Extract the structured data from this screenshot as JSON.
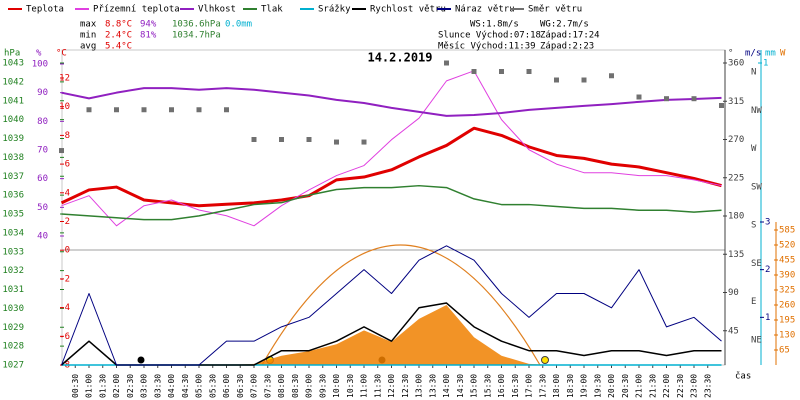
{
  "header": {
    "stats": [
      {
        "label": "max",
        "values": [
          "8.8°C",
          "94%",
          "1036.6hPa",
          "0.0mm"
        ]
      },
      {
        "label": "min",
        "values": [
          "2.4°C",
          "81%",
          "1034.7hPa"
        ]
      },
      {
        "label": "avg",
        "values": [
          "5.4°C"
        ]
      }
    ],
    "info": [
      [
        "WS:1.8m/s",
        "WG:2.7m/s"
      ],
      [
        "Slunce Východ:07:18",
        "Západ:17:24"
      ],
      [
        "Měsíc Východ:11:39",
        "Západ:2:23"
      ]
    ]
  },
  "chart_data": {
    "type": "line",
    "title": "14.2.2019",
    "x_label": "čas",
    "x": [
      0,
      1,
      2,
      3,
      4,
      5,
      6,
      7,
      8,
      9,
      10,
      11,
      12,
      13,
      14,
      15,
      16,
      17,
      18,
      19,
      20,
      21,
      22,
      23,
      24
    ],
    "xlim": [
      0,
      24
    ],
    "xticks": [
      {
        "value": 0.5,
        "label": "00:30"
      },
      {
        "value": 1,
        "label": "01:00"
      },
      {
        "value": 1.5,
        "label": "01:30"
      },
      {
        "value": 2,
        "label": "02:00"
      },
      {
        "value": 2.5,
        "label": "02:30"
      },
      {
        "value": 3,
        "label": "03:00"
      },
      {
        "value": 3.5,
        "label": "03:30"
      },
      {
        "value": 4,
        "label": "04:00"
      },
      {
        "value": 4.5,
        "label": "04:30"
      },
      {
        "value": 5,
        "label": "05:00"
      },
      {
        "value": 5.5,
        "label": "05:30"
      },
      {
        "value": 6,
        "label": "06:00"
      },
      {
        "value": 6.5,
        "label": "06:30"
      },
      {
        "value": 7,
        "label": "07:00"
      },
      {
        "value": 7.5,
        "label": "07:30"
      },
      {
        "value": 8,
        "label": "08:00"
      },
      {
        "value": 8.5,
        "label": "08:30"
      },
      {
        "value": 9,
        "label": "09:00"
      },
      {
        "value": 9.5,
        "label": "09:30"
      },
      {
        "value": 10,
        "label": "10:00"
      },
      {
        "value": 10.5,
        "label": "10:30"
      },
      {
        "value": 11,
        "label": "11:00"
      },
      {
        "value": 11.5,
        "label": "11:30"
      },
      {
        "value": 12,
        "label": "12:00"
      },
      {
        "value": 12.5,
        "label": "12:30"
      },
      {
        "value": 13,
        "label": "13:00"
      },
      {
        "value": 13.5,
        "label": "13:30"
      },
      {
        "value": 14,
        "label": "14:00"
      },
      {
        "value": 14.5,
        "label": "14:30"
      },
      {
        "value": 15,
        "label": "15:00"
      },
      {
        "value": 15.5,
        "label": "15:30"
      },
      {
        "value": 16,
        "label": "16:00"
      },
      {
        "value": 16.5,
        "label": "16:30"
      },
      {
        "value": 17,
        "label": "17:00"
      },
      {
        "value": 17.5,
        "label": "17:30"
      },
      {
        "value": 18,
        "label": "18:00"
      },
      {
        "value": 18.5,
        "label": "18:30"
      },
      {
        "value": 19,
        "label": "19:00"
      },
      {
        "value": 19.5,
        "label": "19:30"
      },
      {
        "value": 20,
        "label": "20:00"
      },
      {
        "value": 20.5,
        "label": "20:30"
      },
      {
        "value": 21,
        "label": "21:00"
      },
      {
        "value": 21.5,
        "label": "21:30"
      },
      {
        "value": 22,
        "label": "22:00"
      },
      {
        "value": 22.5,
        "label": "22:30"
      },
      {
        "value": 23,
        "label": "23:00"
      },
      {
        "value": 23.5,
        "label": "23:30"
      }
    ],
    "axes": [
      {
        "label": "hPa",
        "color": "#208020",
        "lim": [
          1027,
          1043
        ],
        "ticks": [
          1027,
          1028,
          1029,
          1030,
          1031,
          1032,
          1033,
          1034,
          1035,
          1036,
          1037,
          1038,
          1039,
          1040,
          1041,
          1042,
          1043
        ]
      },
      {
        "label": "%",
        "color": "#9020c0",
        "lim": [
          40,
          100
        ],
        "ticks": [
          40,
          50,
          60,
          70,
          80,
          90,
          100
        ]
      },
      {
        "label": "°C",
        "color": "#e00000",
        "lim": [
          -8,
          12
        ],
        "ticks": [
          -8,
          -6,
          -4,
          -2,
          0,
          2,
          4,
          6,
          8,
          10,
          12
        ]
      },
      {
        "label": "°",
        "color": "#404040",
        "lim": [
          0,
          360
        ],
        "ticks": [
          45,
          90,
          135,
          180,
          225,
          270,
          315,
          360
        ],
        "tick_names": [
          "NE",
          "E",
          "SE",
          "S",
          "SW",
          "W",
          "NW",
          "N"
        ]
      },
      {
        "label": "m/s",
        "color": "#000080",
        "lim": [
          0,
          3
        ],
        "ticks": [
          1,
          2,
          3
        ]
      },
      {
        "label": "mm",
        "color": "#00b0d0",
        "lim": [
          0,
          1
        ],
        "ticks": [
          1
        ]
      },
      {
        "label": "W",
        "color": "#e07000",
        "lim": [
          0,
          585
        ],
        "ticks": [
          65,
          130,
          195,
          260,
          325,
          390,
          455,
          520,
          585
        ]
      }
    ],
    "series": [
      {
        "name": "Teplota",
        "color": "#e00000",
        "axis": 2,
        "width": 3,
        "values": [
          3.3,
          4.2,
          4.4,
          3.5,
          3.3,
          3.1,
          3.2,
          3.3,
          3.5,
          3.8,
          4.9,
          5.1,
          5.6,
          6.5,
          7.3,
          8.5,
          8.0,
          7.2,
          6.6,
          6.4,
          6.0,
          5.8,
          5.4,
          5.0,
          4.5
        ]
      },
      {
        "name": "Přízemní teplota",
        "color": "#e040e0",
        "axis": 2,
        "width": 1,
        "values": [
          3.1,
          3.8,
          1.7,
          3.1,
          3.5,
          2.8,
          2.4,
          1.7,
          3.1,
          4.2,
          5.2,
          5.9,
          7.7,
          9.2,
          11.8,
          12.5,
          9.1,
          7.0,
          6.0,
          5.4,
          5.4,
          5.2,
          5.2,
          4.9,
          4.5
        ]
      },
      {
        "name": "Vlhkost",
        "color": "#9020c0",
        "axis": 1,
        "width": 2,
        "values": [
          90,
          88,
          90,
          91.6,
          91.6,
          91,
          91.6,
          91,
          90,
          89,
          87.5,
          86.4,
          84.7,
          83.3,
          81.9,
          82.2,
          82.9,
          84,
          84.7,
          85.4,
          86,
          86.8,
          87.5,
          87.8,
          88.2
        ]
      },
      {
        "name": "Tlak",
        "color": "#308030",
        "axis": 0,
        "width": 1.5,
        "values": [
          1035,
          1034.9,
          1034.8,
          1034.7,
          1034.7,
          1034.9,
          1035.2,
          1035.5,
          1035.6,
          1036,
          1036.3,
          1036.4,
          1036.4,
          1036.5,
          1036.4,
          1035.8,
          1035.5,
          1035.5,
          1035.4,
          1035.3,
          1035.3,
          1035.2,
          1035.2,
          1035.1,
          1035.2
        ]
      },
      {
        "name": "Srážky",
        "color": "#00b0d0",
        "axis": 5,
        "width": 1.5,
        "values": [
          0,
          0,
          0,
          0,
          0,
          0,
          0,
          0,
          0,
          0,
          0,
          0,
          0,
          0,
          0,
          0,
          0,
          0,
          0,
          0,
          0,
          0,
          0,
          0,
          0
        ]
      },
      {
        "name": "Rychlost větru",
        "color": "#000000",
        "axis": 4,
        "width": 1.5,
        "values": [
          0,
          0.5,
          0,
          0,
          0,
          0,
          0,
          0,
          0.3,
          0.3,
          0.5,
          0.8,
          0.5,
          1.2,
          1.3,
          0.8,
          0.5,
          0.3,
          0.3,
          0.2,
          0.3,
          0.3,
          0.2,
          0.3,
          0.3
        ]
      },
      {
        "name": "Náraz větru",
        "color": "#000080",
        "axis": 4,
        "width": 1,
        "values": [
          0,
          1.5,
          0,
          0,
          0,
          0,
          0.5,
          0.5,
          0.8,
          1.0,
          1.5,
          2.0,
          1.5,
          2.2,
          2.5,
          2.2,
          1.5,
          1.0,
          1.5,
          1.5,
          1.2,
          2.0,
          0.8,
          1.0,
          0.5
        ]
      },
      {
        "name": "Směr větru",
        "color": "#707070",
        "axis": 3,
        "marker": "square",
        "values": [
          257,
          305,
          305,
          305,
          305,
          305,
          305,
          270,
          270,
          270,
          267,
          267,
          null,
          null,
          360,
          350,
          350,
          350,
          340,
          340,
          345,
          320,
          318,
          318,
          310
        ]
      }
    ],
    "radiation": {
      "color": "#f08000",
      "axis": 6,
      "values": [
        0,
        0,
        0,
        0,
        0,
        0,
        0,
        5,
        40,
        60,
        90,
        150,
        100,
        200,
        260,
        120,
        40,
        5,
        0,
        0,
        0,
        0,
        0,
        0,
        0
      ]
    }
  }
}
